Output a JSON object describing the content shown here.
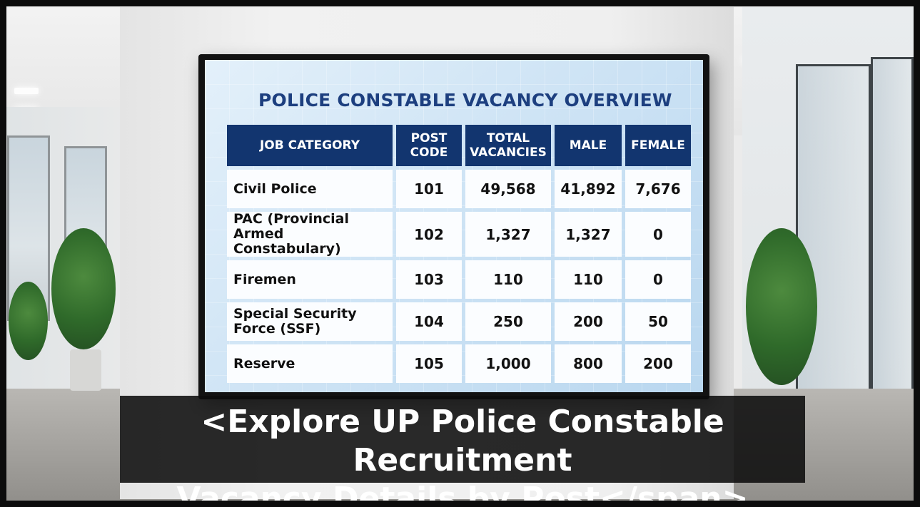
{
  "screen": {
    "title": "POLICE CONSTABLE VACANCY OVERVIEW",
    "headers": [
      "JOB CATEGORY",
      "POST CODE",
      "TOTAL VACANCIES",
      "MALE",
      "FEMALE"
    ],
    "rows": [
      {
        "category": "Civil Police",
        "post_code": "101",
        "total": "49,568",
        "male": "41,892",
        "female": "7,676"
      },
      {
        "category": "PAC (Provincial Armed Constabulary)",
        "post_code": "102",
        "total": "1,327",
        "male": "1,327",
        "female": "0"
      },
      {
        "category": "Firemen",
        "post_code": "103",
        "total": "110",
        "male": "110",
        "female": "0"
      },
      {
        "category": "Special Security Force (SSF)",
        "post_code": "104",
        "total": "250",
        "male": "200",
        "female": "50"
      },
      {
        "category": "Reserve",
        "post_code": "105",
        "total": "1,000",
        "male": "800",
        "female": "200"
      }
    ]
  },
  "caption": {
    "line1": "<Explore UP Police Constable Recruitment",
    "line2": "Vacancy Details by Post</span>"
  },
  "colors": {
    "header_bg": "#12356f",
    "title_text": "#1d3f7f",
    "caption_bg": "#0c0c0c"
  }
}
